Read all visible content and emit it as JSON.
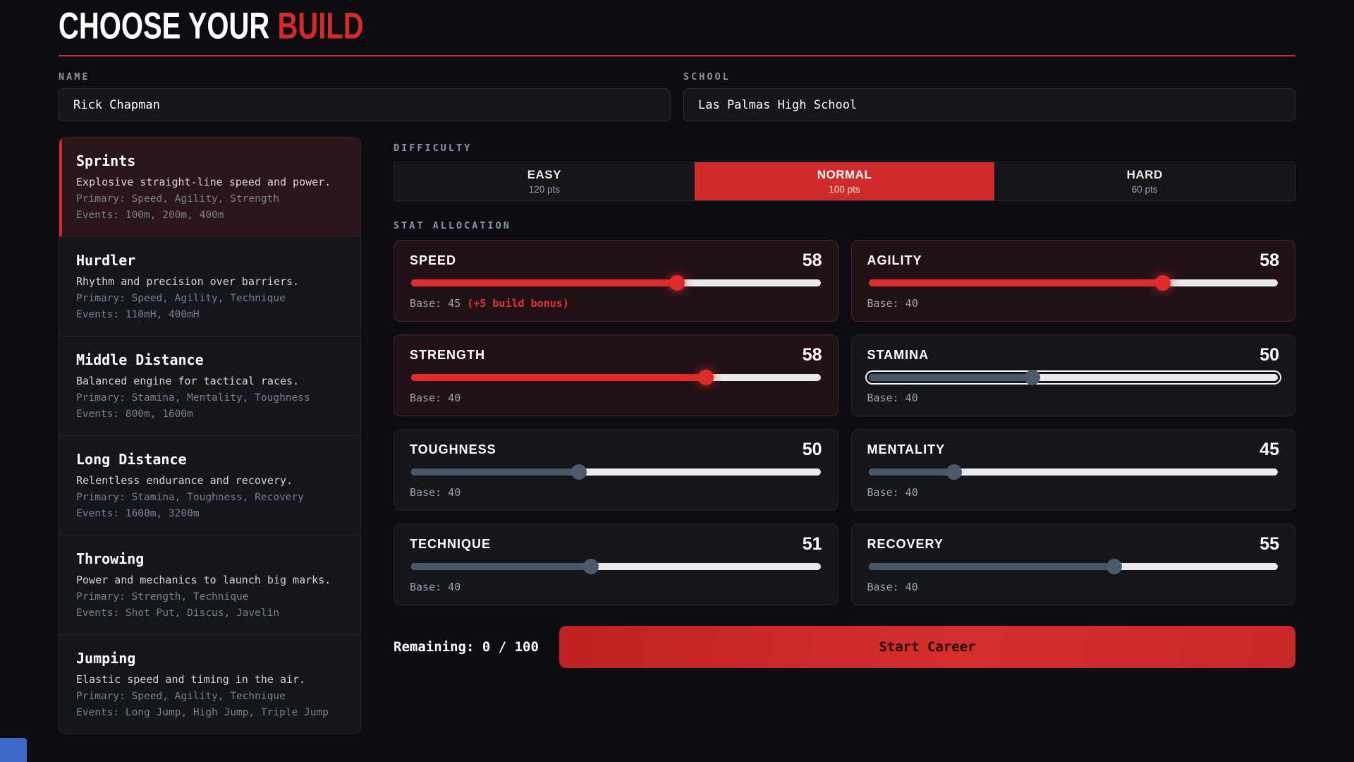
{
  "accent_red": "#d32b2b",
  "header": {
    "title_prefix": "CHOOSE YOUR ",
    "title_accent": "BUILD"
  },
  "name_field": {
    "label": "NAME",
    "value": "Rick Chapman"
  },
  "school_field": {
    "label": "SCHOOL",
    "value": "Las Palmas High School"
  },
  "builds": {
    "items": [
      {
        "name": "Sprints",
        "desc": "Explosive straight-line speed and power.",
        "primary": "Primary: Speed, Agility, Strength",
        "events": "Events: 100m, 200m, 400m",
        "selected": true
      },
      {
        "name": "Hurdler",
        "desc": "Rhythm and precision over barriers.",
        "primary": "Primary: Speed, Agility, Technique",
        "events": "Events: 110mH, 400mH",
        "selected": false
      },
      {
        "name": "Middle Distance",
        "desc": "Balanced engine for tactical races.",
        "primary": "Primary: Stamina, Mentality, Toughness",
        "events": "Events: 800m, 1600m",
        "selected": false
      },
      {
        "name": "Long Distance",
        "desc": "Relentless endurance and recovery.",
        "primary": "Primary: Stamina, Toughness, Recovery",
        "events": "Events: 1600m, 3200m",
        "selected": false
      },
      {
        "name": "Throwing",
        "desc": "Power and mechanics to launch big marks.",
        "primary": "Primary: Strength, Technique",
        "events": "Events: Shot Put, Discus, Javelin",
        "selected": false
      },
      {
        "name": "Jumping",
        "desc": "Elastic speed and timing in the air.",
        "primary": "Primary: Speed, Agility, Technique",
        "events": "Events: Long Jump, High Jump, Triple Jump",
        "selected": false
      }
    ]
  },
  "difficulty": {
    "label": "DIFFICULTY",
    "options": [
      {
        "name": "EASY",
        "pts": "120 pts",
        "selected": false
      },
      {
        "name": "NORMAL",
        "pts": "100 pts",
        "selected": true
      },
      {
        "name": "HARD",
        "pts": "60 pts",
        "selected": false
      }
    ]
  },
  "stats": {
    "label": "STAT ALLOCATION",
    "cards": [
      {
        "name": "SPEED",
        "value": "58",
        "base": "Base: 45",
        "bonus": "(+5 build bonus)",
        "fill_pct": 65,
        "primary": true,
        "focused": false
      },
      {
        "name": "AGILITY",
        "value": "58",
        "base": "Base: 40",
        "bonus": "",
        "fill_pct": 72,
        "primary": true,
        "focused": false
      },
      {
        "name": "STRENGTH",
        "value": "58",
        "base": "Base: 40",
        "bonus": "",
        "fill_pct": 72,
        "primary": true,
        "focused": false
      },
      {
        "name": "STAMINA",
        "value": "50",
        "base": "Base: 40",
        "bonus": "",
        "fill_pct": 40,
        "primary": false,
        "focused": true
      },
      {
        "name": "TOUGHNESS",
        "value": "50",
        "base": "Base: 40",
        "bonus": "",
        "fill_pct": 41,
        "primary": false,
        "focused": false
      },
      {
        "name": "MENTALITY",
        "value": "45",
        "base": "Base: 40",
        "bonus": "",
        "fill_pct": 21,
        "primary": false,
        "focused": false
      },
      {
        "name": "TECHNIQUE",
        "value": "51",
        "base": "Base: 40",
        "bonus": "",
        "fill_pct": 44,
        "primary": false,
        "focused": false
      },
      {
        "name": "RECOVERY",
        "value": "55",
        "base": "Base: 40",
        "bonus": "",
        "fill_pct": 60,
        "primary": false,
        "focused": false
      }
    ]
  },
  "footer": {
    "remaining": "Remaining: 0 / 100",
    "start_label": "Start Career"
  }
}
